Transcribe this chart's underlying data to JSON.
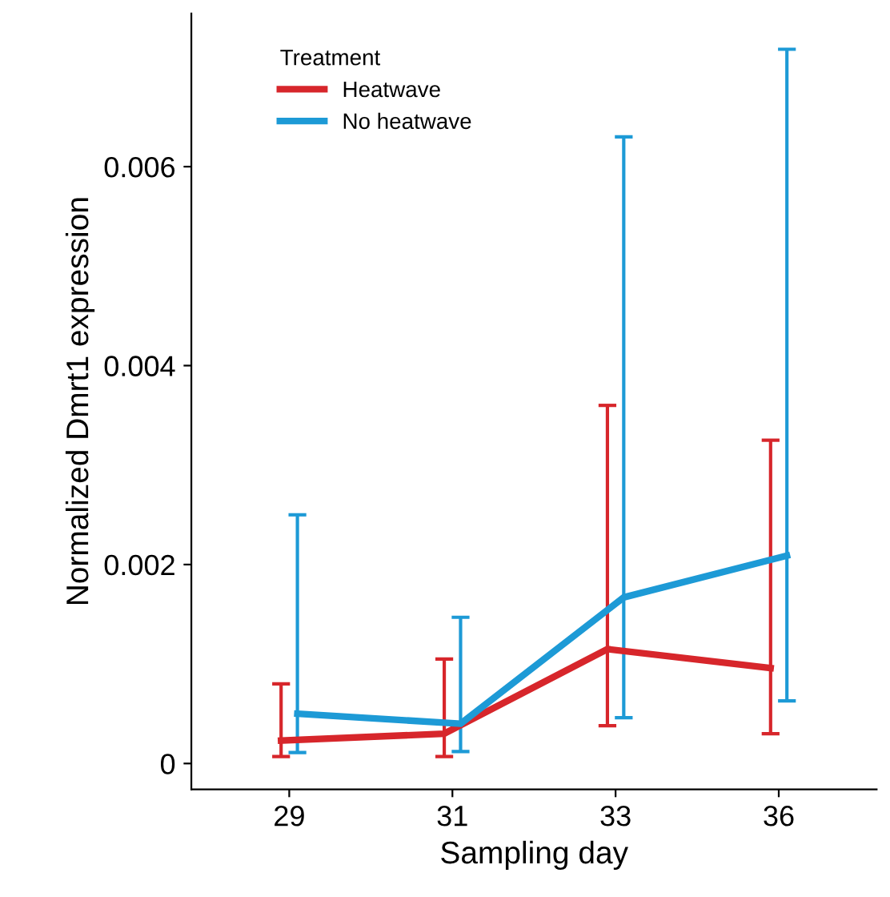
{
  "chart_data": {
    "type": "line",
    "xlabel": "Sampling day",
    "ylabel": "Normalized Dmrt1 expression",
    "legend_title": "Treatment",
    "legend": "top left",
    "grid": false,
    "marker": "none",
    "line_style": "solid",
    "categories": [
      "29",
      "31",
      "33",
      "36"
    ],
    "ylim": [
      -0.00026,
      0.00754
    ],
    "yticks": [
      {
        "value": 0,
        "label": "0"
      },
      0.002,
      0.004,
      0.006
    ],
    "series": [
      {
        "name": "Heatwave",
        "color": "#d7262b",
        "values": [
          0.00023,
          0.0003,
          0.00115,
          0.00096
        ],
        "errors": [
          [
            7e-05,
            0.0008
          ],
          [
            7e-05,
            0.00105
          ],
          [
            0.00038,
            0.0036
          ],
          [
            0.0003,
            0.00325
          ]
        ]
      },
      {
        "name": "No heatwave",
        "color": "#1d9ad6",
        "values": [
          0.0005,
          0.0004,
          0.00167,
          0.00209
        ],
        "errors": [
          [
            0.00011,
            0.0025
          ],
          [
            0.00012,
            0.00147
          ],
          [
            0.00046,
            0.0063
          ],
          [
            0.00063,
            0.00718
          ]
        ]
      }
    ]
  }
}
